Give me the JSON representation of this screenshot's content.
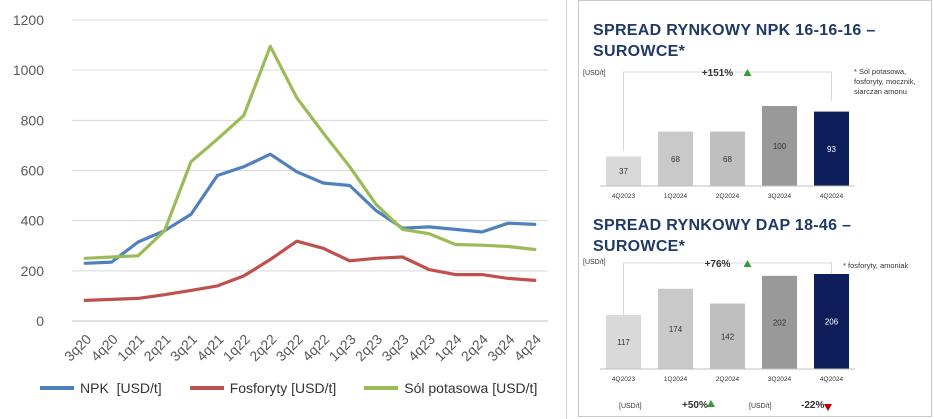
{
  "chart_data": [
    {
      "type": "line",
      "categories": [
        "3q20",
        "4q20",
        "1q21",
        "2q21",
        "3q21",
        "4q21",
        "1q22",
        "2q22",
        "3q22",
        "4q22",
        "1q23",
        "2q23",
        "3q23",
        "4q23",
        "1q24",
        "2q24",
        "3q24",
        "4q24"
      ],
      "ylim": [
        0,
        1200
      ],
      "yticks": [
        0,
        200,
        400,
        600,
        800,
        1000,
        1200
      ],
      "grid": true,
      "legend_position": "bottom",
      "series": [
        {
          "name": "NPK  [USD/t]",
          "color": "#4f81bd",
          "values": [
            230,
            235,
            315,
            360,
            425,
            580,
            615,
            665,
            595,
            550,
            540,
            440,
            370,
            375,
            365,
            355,
            390,
            385
          ]
        },
        {
          "name": "Fosforyty [USD/t]",
          "color": "#c0504d",
          "values": [
            82,
            86,
            90,
            105,
            122,
            140,
            180,
            245,
            318,
            290,
            240,
            250,
            255,
            205,
            185,
            185,
            170,
            162
          ]
        },
        {
          "name": "Sól potasowa [USD/t]",
          "color": "#9bbb59",
          "values": [
            250,
            255,
            260,
            360,
            635,
            725,
            820,
            1095,
            890,
            750,
            615,
            465,
            365,
            348,
            305,
            302,
            297,
            285
          ]
        }
      ]
    },
    {
      "type": "bar",
      "title": "SPREAD RYNKOWY NPK 16-16-16 – SUROWCE*",
      "unit_label": "[USD/t]",
      "change_label": "+151%",
      "change_direction": "up",
      "footnote": "* Sól potasowa, fosforyty, mocznik, siarczan amonu",
      "categories": [
        "4Q2023",
        "1Q2024",
        "2Q2024",
        "3Q2024",
        "4Q2024"
      ],
      "values": [
        37,
        68,
        68,
        100,
        93
      ],
      "colors": [
        "#d9d9d9",
        "#c9c9c9",
        "#bfbfbf",
        "#999999",
        "#0e1e5b"
      ]
    },
    {
      "type": "bar",
      "title": "SPREAD RYNKOWY DAP 18-46 – SUROWCE*",
      "unit_label": "[USD/t]",
      "change_label": "+76%",
      "change_direction": "up",
      "footnote": "* fosforyty, amoniak",
      "categories": [
        "4Q2023",
        "1Q2024",
        "2Q2024",
        "3Q2024",
        "4Q2024"
      ],
      "values": [
        117,
        174,
        142,
        202,
        206
      ],
      "colors": [
        "#d9d9d9",
        "#c9c9c9",
        "#bfbfbf",
        "#999999",
        "#0e1e5b"
      ],
      "sub_labels": [
        {
          "unit": "[USD/t]",
          "text": "+50%",
          "direction": "up"
        },
        {
          "unit": "[USD/t]",
          "text": "-22%",
          "direction": "down"
        }
      ]
    }
  ],
  "colors": {
    "up_arrow": "#3a9a3a",
    "down_arrow": "#c00000",
    "title_blue": "#1f3a68"
  }
}
